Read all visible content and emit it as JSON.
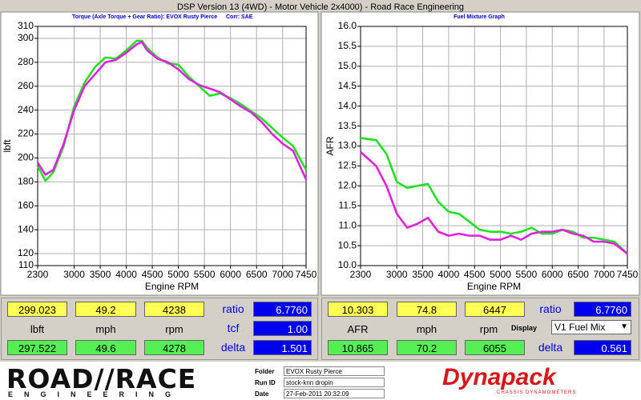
{
  "window": {
    "title": "DSP Version 13 (4WD) - Motor Vehicle 2x4000) - Road Race Engineering"
  },
  "chart_data": [
    {
      "type": "line",
      "subtitle": "Torque (Axle Torque + Gear Ratio): EVOX Rusty Pierce",
      "annotation": "Corr: SAE",
      "x_label": "Engine RPM",
      "y_label": "lbft",
      "x": [
        2300,
        2450,
        2600,
        2800,
        3000,
        3200,
        3400,
        3600,
        3800,
        4000,
        4200,
        4300,
        4400,
        4600,
        4800,
        5000,
        5200,
        5400,
        5600,
        5800,
        6000,
        6200,
        6400,
        6600,
        6800,
        7000,
        7200,
        7450
      ],
      "series": [
        {
          "color": "#22e022",
          "values": [
            193,
            181,
            188,
            210,
            243,
            263,
            276,
            284,
            283,
            290,
            298,
            298,
            292,
            284,
            279,
            278,
            268,
            260,
            252,
            254,
            250,
            245,
            239,
            233,
            225,
            217,
            210,
            190
          ]
        },
        {
          "color": "#e020e0",
          "values": [
            196,
            186,
            190,
            212,
            240,
            260,
            270,
            280,
            282,
            288,
            295,
            297,
            290,
            283,
            280,
            274,
            266,
            261,
            258,
            255,
            249,
            243,
            238,
            230,
            220,
            212,
            206,
            182
          ]
        }
      ],
      "xlim": [
        2300,
        7450
      ],
      "xticks": [
        2300,
        3000,
        3500,
        4000,
        4500,
        5000,
        5500,
        6000,
        6500,
        7000,
        7450
      ],
      "ylim": [
        110,
        310
      ],
      "yticks": [
        110,
        120,
        140,
        160,
        180,
        200,
        220,
        240,
        260,
        280,
        300,
        310
      ],
      "grid": true
    },
    {
      "type": "line",
      "subtitle": "Fuel Mixture Graph",
      "x_label": "Engine RPM",
      "y_label": "AFR",
      "x": [
        2300,
        2600,
        2800,
        3000,
        3200,
        3400,
        3600,
        3800,
        4000,
        4200,
        4400,
        4600,
        4800,
        5000,
        5200,
        5400,
        5600,
        5800,
        6000,
        6200,
        6400,
        6600,
        6800,
        7000,
        7200,
        7450
      ],
      "series": [
        {
          "color": "#22e022",
          "values": [
            13.2,
            13.15,
            12.8,
            12.1,
            11.95,
            12.0,
            12.05,
            11.6,
            11.35,
            11.3,
            11.1,
            10.9,
            10.85,
            10.85,
            10.8,
            10.85,
            10.95,
            10.8,
            10.8,
            10.9,
            10.85,
            10.7,
            10.7,
            10.65,
            10.6,
            10.3
          ]
        },
        {
          "color": "#e020e0",
          "values": [
            12.85,
            12.5,
            12.0,
            11.3,
            10.95,
            11.05,
            11.2,
            10.85,
            10.75,
            10.8,
            10.75,
            10.75,
            10.65,
            10.65,
            10.75,
            10.65,
            10.8,
            10.85,
            10.85,
            10.9,
            10.8,
            10.75,
            10.6,
            10.6,
            10.55,
            10.3
          ]
        }
      ],
      "xlim": [
        2300,
        7450
      ],
      "xticks": [
        2300,
        3000,
        3500,
        4000,
        4500,
        5000,
        5500,
        6000,
        6500,
        7000,
        7450
      ],
      "ylim": [
        10.0,
        16.0
      ],
      "yticks": [
        {
          "value": 10.0,
          "label": "10.0"
        },
        {
          "value": 10.5,
          "label": "10.5"
        },
        {
          "value": 11.0,
          "label": "11.0"
        },
        {
          "value": 11.5,
          "label": "11.5"
        },
        {
          "value": 12.0,
          "label": "12.0"
        },
        {
          "value": 12.5,
          "label": "12.5"
        },
        {
          "value": 13.0,
          "label": "13.0"
        },
        {
          "value": 13.5,
          "label": "13.5"
        },
        {
          "value": 14.0,
          "label": "14.0"
        },
        {
          "value": 14.5,
          "label": "14.5"
        },
        {
          "value": 15.0,
          "label": "15.0"
        },
        {
          "value": 15.5,
          "label": "15.5"
        },
        {
          "value": 16.0,
          "label": "16.0"
        }
      ],
      "grid": true
    }
  ],
  "readouts": {
    "left": {
      "top": [
        "299.023",
        "49.2",
        "4238"
      ],
      "units": [
        "lbft",
        "mph",
        "rpm"
      ],
      "bottom": [
        "297.522",
        "49.6",
        "4278"
      ],
      "side_labels": [
        "ratio",
        "tcf",
        "delta"
      ],
      "side_values": [
        "6.7760",
        "1.00",
        "1.501"
      ]
    },
    "right": {
      "top": [
        "10.303",
        "74.8",
        "6447"
      ],
      "units": [
        "AFR",
        "mph",
        "rpm"
      ],
      "bottom": [
        "10.865",
        "70.2",
        "6055"
      ],
      "side_labels": [
        "ratio",
        "delta"
      ],
      "side_values": [
        "6.7760",
        "0.561"
      ],
      "display_label": "Display",
      "display_value": "V1 Fuel Mix"
    }
  },
  "footer": {
    "logo": "ROAD//RACE",
    "logo_sub": "ENGINEERING",
    "fields": [
      {
        "label": "Folder",
        "value": "EVOX Rusty Pierce"
      },
      {
        "label": "Run ID",
        "value": "stock-knn dropin"
      },
      {
        "label": "Date",
        "value": "27-Feb-2011 20:32:09"
      }
    ],
    "brand": "Dynapack",
    "brand_sub": "CHASSIS DYNAMOMETERS"
  }
}
